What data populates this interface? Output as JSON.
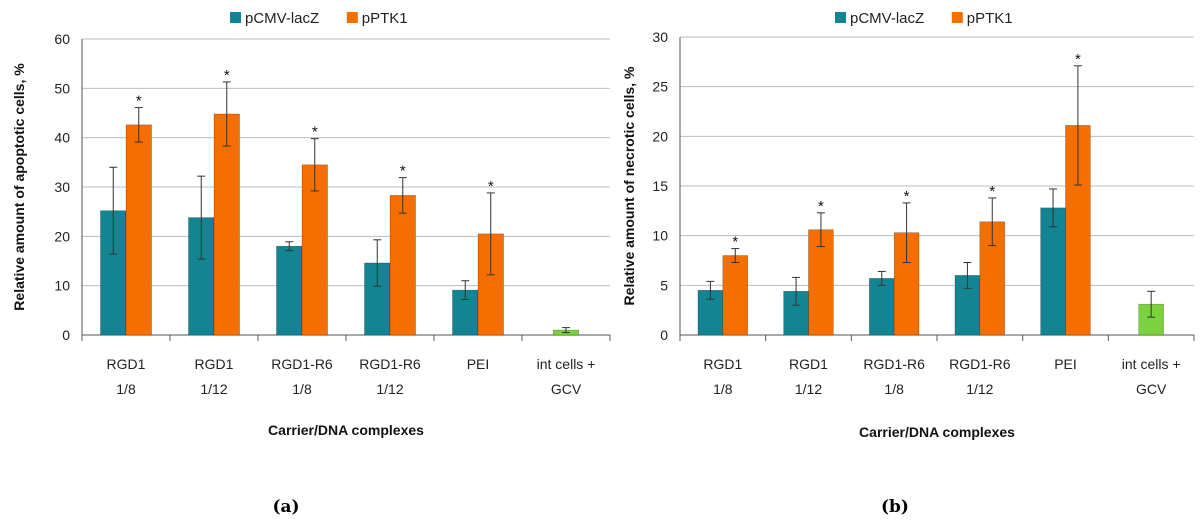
{
  "colors": {
    "pcmv": "#138592",
    "pptk1": "#F56E00",
    "control": "#7CD23C",
    "grid": "#BDBDBD",
    "axis": "#555555"
  },
  "chart_data": [
    {
      "type": "bar",
      "panel_label": "(a)",
      "ylabel": "Relative amount of apoptotic cells, %",
      "xlabel": "Carrier/DNA complexes",
      "ylim": [
        0,
        60
      ],
      "yticks": [
        0,
        10,
        20,
        30,
        40,
        50,
        60
      ],
      "grid": true,
      "legend_position": "top",
      "legend": [
        "pCMV-lacZ",
        "pPTK1"
      ],
      "categories": [
        [
          "RGD1",
          "1/8"
        ],
        [
          "RGD1",
          "1/12"
        ],
        [
          "RGD1-R6",
          "1/8"
        ],
        [
          "RGD1-R6",
          "1/12"
        ],
        [
          "PEI"
        ],
        [
          "int cells +",
          "GCV"
        ]
      ],
      "series": [
        {
          "name": "pCMV-lacZ",
          "color": "pcmv",
          "values": [
            25.2,
            23.8,
            18.0,
            14.6,
            9.1,
            null
          ],
          "errors": [
            8.8,
            8.4,
            0.9,
            4.7,
            1.9,
            null
          ]
        },
        {
          "name": "pPTK1",
          "color": "pptk1",
          "values": [
            42.6,
            44.8,
            34.5,
            28.3,
            20.5,
            null
          ],
          "errors": [
            3.5,
            6.5,
            5.3,
            3.6,
            8.3,
            null
          ],
          "significant": [
            true,
            true,
            true,
            true,
            true,
            false
          ]
        }
      ],
      "control": {
        "index": 5,
        "value": 1.0,
        "error": 0.5,
        "color": "control"
      },
      "significance_mark": "*"
    },
    {
      "type": "bar",
      "panel_label": "(b)",
      "ylabel": "Relative amount of necrotic cells, %",
      "xlabel": "Carrier/DNA complexes",
      "ylim": [
        0,
        30
      ],
      "yticks": [
        0,
        5,
        10,
        15,
        20,
        25,
        30
      ],
      "grid": true,
      "legend_position": "top",
      "legend": [
        "pCMV-lacZ",
        "pPTK1"
      ],
      "categories": [
        [
          "RGD1",
          "1/8"
        ],
        [
          "RGD1",
          "1/12"
        ],
        [
          "RGD1-R6",
          "1/8"
        ],
        [
          "RGD1-R6",
          "1/12"
        ],
        [
          "PEI"
        ],
        [
          "int cells +",
          "GCV"
        ]
      ],
      "series": [
        {
          "name": "pCMV-lacZ",
          "color": "pcmv",
          "values": [
            4.5,
            4.4,
            5.7,
            6.0,
            12.8,
            null
          ],
          "errors": [
            0.9,
            1.4,
            0.7,
            1.3,
            1.9,
            null
          ]
        },
        {
          "name": "pPTK1",
          "color": "pptk1",
          "values": [
            8.0,
            10.6,
            10.3,
            11.4,
            21.1,
            null
          ],
          "errors": [
            0.7,
            1.7,
            3.0,
            2.4,
            6.0,
            null
          ],
          "significant": [
            true,
            true,
            true,
            true,
            true,
            false
          ]
        }
      ],
      "control": {
        "index": 5,
        "value": 3.1,
        "error": 1.3,
        "color": "control"
      },
      "significance_mark": "*"
    }
  ]
}
